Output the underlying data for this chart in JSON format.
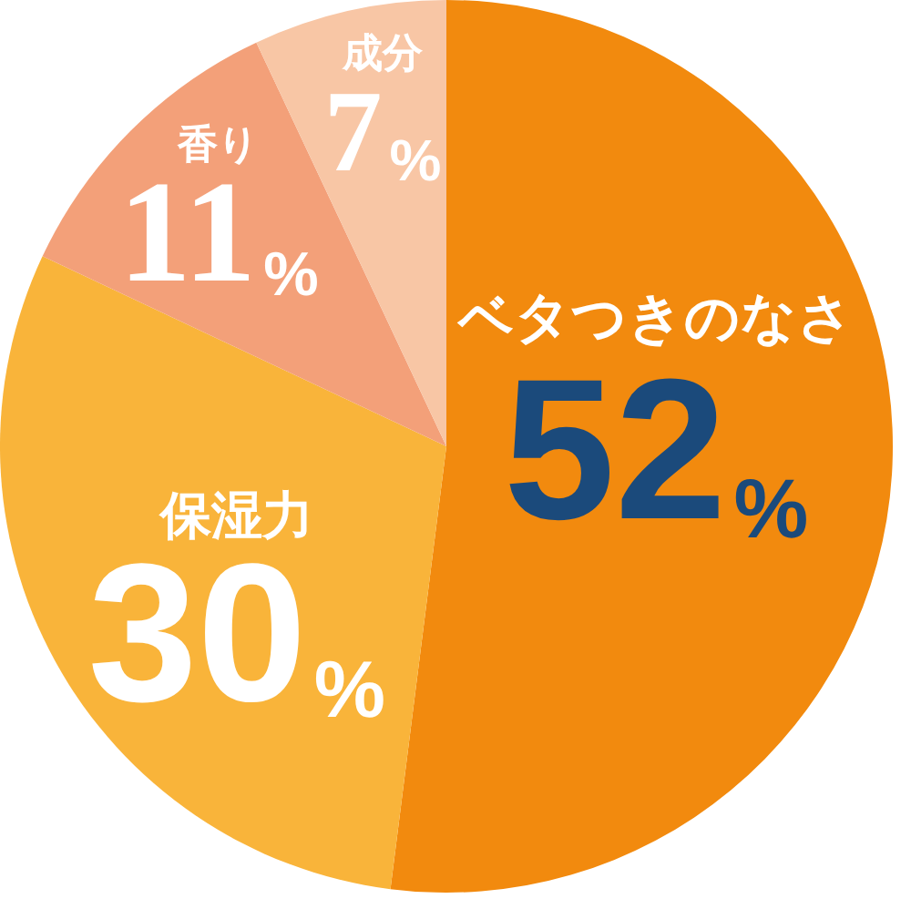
{
  "chart_data": {
    "type": "pie",
    "categories": [
      "ベタつきのなさ",
      "保湿力",
      "香り",
      "成分"
    ],
    "values": [
      52,
      30,
      11,
      7
    ],
    "colors": [
      "#f28a0e",
      "#f9b43a",
      "#f3a079",
      "#f8c6a5"
    ],
    "value_labels": [
      "52%",
      "30%",
      "11%",
      "7%"
    ]
  }
}
